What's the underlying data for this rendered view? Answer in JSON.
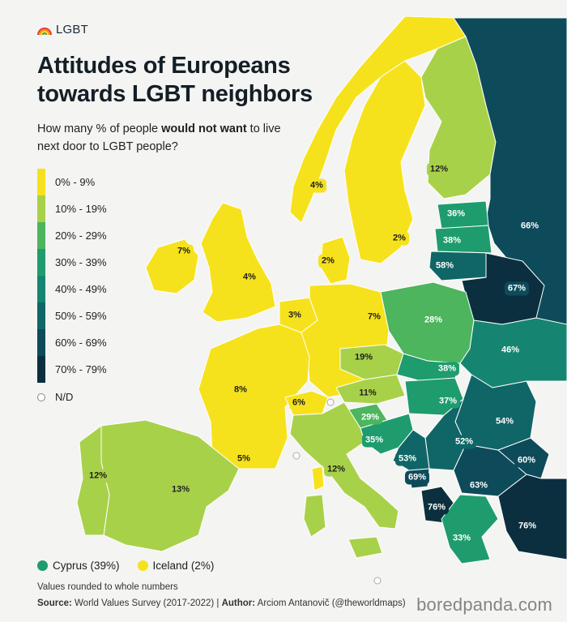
{
  "header": {
    "logo_text": "LGBT",
    "logo_icon": "rainbow-icon",
    "title_line1": "Attitudes of Europeans",
    "title_line2": "towards LGBT neighbors",
    "subtitle_pre": "How many % of people ",
    "subtitle_bold": "would not want",
    "subtitle_post": " to live next door to LGBT people?"
  },
  "legend": {
    "bins": [
      {
        "label": "0% - 9%",
        "color": "#f6e21c"
      },
      {
        "label": "10% - 19%",
        "color": "#a8d14a"
      },
      {
        "label": "20% - 29%",
        "color": "#4cb55e"
      },
      {
        "label": "30% - 39%",
        "color": "#1f9c6e"
      },
      {
        "label": "40% - 49%",
        "color": "#158571"
      },
      {
        "label": "50% - 59%",
        "color": "#106667"
      },
      {
        "label": "60% - 69%",
        "color": "#0e4b5a"
      },
      {
        "label": "70% - 79%",
        "color": "#0b2f3f"
      }
    ],
    "nd_label": "N/D",
    "nd_color": "#ffffff"
  },
  "countries": [
    {
      "name": "Iceland",
      "value": 2
    },
    {
      "name": "Norway",
      "value": 4,
      "label": "4%"
    },
    {
      "name": "Sweden",
      "value": 2,
      "label": "2%"
    },
    {
      "name": "Finland",
      "value": 12,
      "label": "12%"
    },
    {
      "name": "Russia",
      "value": 66,
      "label": "66%"
    },
    {
      "name": "Estonia",
      "value": 36,
      "label": "36%"
    },
    {
      "name": "Latvia",
      "value": 38,
      "label": "38%"
    },
    {
      "name": "Lithuania",
      "value": 58,
      "label": "58%"
    },
    {
      "name": "Belarus",
      "value": 67,
      "label": "67%"
    },
    {
      "name": "Ireland",
      "value": 7,
      "label": "7%"
    },
    {
      "name": "United Kingdom",
      "value": 4,
      "label": "4%"
    },
    {
      "name": "Denmark",
      "value": 2,
      "label": "2%"
    },
    {
      "name": "Netherlands",
      "value": 3,
      "label": "3%"
    },
    {
      "name": "Germany",
      "value": 7,
      "label": "7%"
    },
    {
      "name": "Poland",
      "value": 28,
      "label": "28%"
    },
    {
      "name": "Ukraine",
      "value": 46,
      "label": "46%"
    },
    {
      "name": "Czechia",
      "value": 19,
      "label": "19%"
    },
    {
      "name": "Slovakia",
      "value": 38,
      "label": "38%"
    },
    {
      "name": "Austria",
      "value": 11,
      "label": "11%"
    },
    {
      "name": "Hungary",
      "value": 37,
      "label": "37%"
    },
    {
      "name": "France",
      "value": 8,
      "label": "8%"
    },
    {
      "name": "Switzerland",
      "value": 6,
      "label": "6%"
    },
    {
      "name": "Slovenia",
      "value": 29,
      "label": "29%"
    },
    {
      "name": "Croatia",
      "value": 35,
      "label": "35%"
    },
    {
      "name": "Romania",
      "value": 54,
      "label": "54%"
    },
    {
      "name": "Serbia",
      "value": 52,
      "label": "52%"
    },
    {
      "name": "Bosnia and Herzegovina",
      "value": 53,
      "label": "53%"
    },
    {
      "name": "Montenegro",
      "value": 69,
      "label": "69%"
    },
    {
      "name": "Bulgaria",
      "value": 63,
      "label": "63%"
    },
    {
      "name": "North Macedonia",
      "value": 60,
      "label": "60%"
    },
    {
      "name": "Albania",
      "value": 76,
      "label": "76%"
    },
    {
      "name": "Turkey",
      "value": 76,
      "label": "76%"
    },
    {
      "name": "Greece",
      "value": 33,
      "label": "33%"
    },
    {
      "name": "Italy",
      "value": 12,
      "label": "12%"
    },
    {
      "name": "Spain",
      "value": 13,
      "label": "13%"
    },
    {
      "name": "Portugal",
      "value": 12,
      "label": "12%"
    },
    {
      "name": "Monaco",
      "value": 5,
      "label": "5%"
    }
  ],
  "extra": [
    {
      "label": "Cyprus (39%)",
      "color": "#1f9c6e"
    },
    {
      "label": "Iceland (2%)",
      "color": "#f6e21c"
    }
  ],
  "footnote": "Values rounded to whole numbers",
  "source": {
    "source_label": "Source:",
    "source_text": " World Values Survey (2017-2022) | ",
    "author_label": "Author:",
    "author_text": " Arciom Antanovič (@theworldmaps)"
  },
  "watermark": "boredpanda.com"
}
